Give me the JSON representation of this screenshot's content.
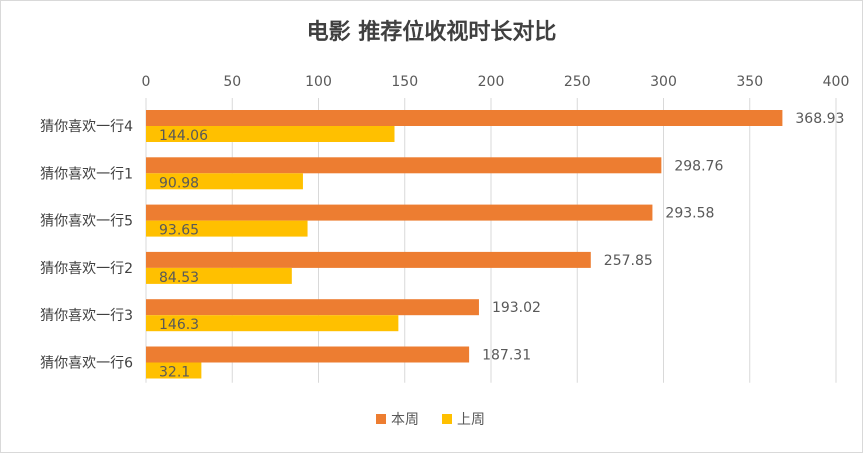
{
  "chart_data": {
    "type": "bar",
    "orientation": "horizontal",
    "title": "电影 推荐位收视时长对比",
    "categories": [
      "猜你喜欢一行4",
      "猜你喜欢一行1",
      "猜你喜欢一行5",
      "猜你喜欢一行2",
      "猜你喜欢一行3",
      "猜你喜欢一行6"
    ],
    "series": [
      {
        "name": "本周",
        "color": "#ED7D31",
        "values": [
          368.93,
          298.76,
          293.58,
          257.85,
          193.02,
          187.31
        ]
      },
      {
        "name": "上周",
        "color": "#FFC000",
        "values": [
          144.06,
          90.98,
          93.65,
          84.53,
          146.3,
          32.1
        ]
      }
    ],
    "xlim": [
      0,
      400
    ],
    "xticks": [
      0,
      50,
      100,
      150,
      200,
      250,
      300,
      350,
      400
    ],
    "grid": true,
    "xaxis_position": "top",
    "legend_position": "bottom"
  }
}
